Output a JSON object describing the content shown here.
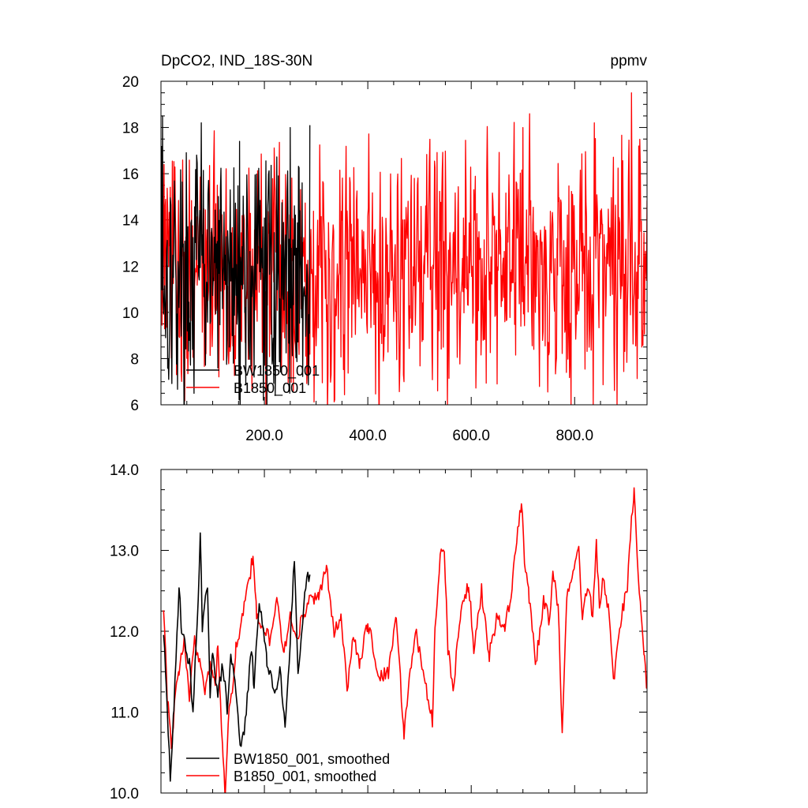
{
  "chart_data": [
    {
      "type": "line",
      "title_left": "DpCO2, IND_18S-30N",
      "title_right": "ppmv",
      "xlim": [
        0,
        940
      ],
      "ylim": [
        6,
        20
      ],
      "x_tick_values": [
        200,
        400,
        600,
        800
      ],
      "x_tick_labels": [
        "200.0",
        "400.0",
        "600.0",
        "800.0"
      ],
      "y_tick_values": [
        6,
        8,
        10,
        12,
        14,
        16,
        18,
        20
      ],
      "y_tick_labels": [
        "6",
        "8",
        "10",
        "12",
        "14",
        "16",
        "18",
        "20"
      ],
      "legend_location": "bottom-left",
      "series": [
        {
          "name": "BW1850_001",
          "color": "#000000",
          "x_start": 1,
          "x_step": 1,
          "count": 288,
          "mean": 11.7,
          "amplitude": 2.4,
          "key_points": [
            [
              1,
              17.2
            ],
            [
              3,
              18.5
            ],
            [
              8,
              10.2
            ],
            [
              78,
              18.2
            ],
            [
              140,
              7.8
            ],
            [
              152,
              17.4
            ],
            [
              198,
              6.2
            ],
            [
              250,
              18.0
            ],
            [
              288,
              18.1
            ]
          ]
        },
        {
          "name": "B1850_001",
          "color": "#ff0000",
          "x_start": 1,
          "x_step": 1,
          "count": 940,
          "mean": 11.9,
          "amplitude": 2.5,
          "key_points": [
            [
              6,
              16.4
            ],
            [
              30,
              7.3
            ],
            [
              470,
              7.0
            ],
            [
              535,
              6.6
            ],
            [
              650,
              6.9
            ],
            [
              700,
              18.0
            ],
            [
              838,
              18.2
            ],
            [
              910,
              19.5
            ],
            [
              930,
              8.5
            ]
          ]
        }
      ]
    },
    {
      "type": "line",
      "xlim": [
        0,
        940
      ],
      "ylim": [
        10,
        14
      ],
      "y_tick_values": [
        10,
        11,
        12,
        13,
        14
      ],
      "y_tick_labels": [
        "10.0",
        "11.0",
        "12.0",
        "13.0",
        "14.0"
      ],
      "legend_location": "bottom-left",
      "series": [
        {
          "name": "BW1850_001, smoothed",
          "color": "#000000",
          "key_points": [
            [
              5,
              12.0
            ],
            [
              10,
              11.3
            ],
            [
              18,
              10.2
            ],
            [
              25,
              11.0
            ],
            [
              35,
              12.6
            ],
            [
              40,
              12.0
            ],
            [
              55,
              11.6
            ],
            [
              62,
              11.0
            ],
            [
              72,
              12.4
            ],
            [
              76,
              13.3
            ],
            [
              80,
              12.0
            ],
            [
              90,
              12.6
            ],
            [
              95,
              11.1
            ],
            [
              100,
              11.8
            ],
            [
              110,
              11.2
            ],
            [
              120,
              11.6
            ],
            [
              128,
              11.0
            ],
            [
              135,
              11.7
            ],
            [
              145,
              11.3
            ],
            [
              155,
              10.5
            ],
            [
              165,
              11.0
            ],
            [
              175,
              11.8
            ],
            [
              180,
              11.3
            ],
            [
              190,
              12.4
            ],
            [
              196,
              12.1
            ],
            [
              205,
              11.6
            ],
            [
              212,
              11.5
            ],
            [
              220,
              11.2
            ],
            [
              230,
              11.6
            ],
            [
              240,
              10.8
            ],
            [
              250,
              11.9
            ],
            [
              258,
              12.9
            ],
            [
              265,
              11.4
            ],
            [
              272,
              11.9
            ],
            [
              280,
              12.6
            ],
            [
              288,
              12.7
            ]
          ]
        },
        {
          "name": "B1850_001, smoothed",
          "color": "#ff0000",
          "key_points": [
            [
              5,
              12.3
            ],
            [
              12,
              11.2
            ],
            [
              20,
              10.6
            ],
            [
              28,
              11.2
            ],
            [
              35,
              11.5
            ],
            [
              45,
              11.9
            ],
            [
              55,
              11.2
            ],
            [
              65,
              11.9
            ],
            [
              75,
              11.6
            ],
            [
              85,
              11.3
            ],
            [
              95,
              11.6
            ],
            [
              105,
              11.3
            ],
            [
              110,
              11.9
            ],
            [
              115,
              11.1
            ],
            [
              120,
              10.5
            ],
            [
              124,
              10.0
            ],
            [
              130,
              10.9
            ],
            [
              138,
              11.3
            ],
            [
              145,
              11.8
            ],
            [
              155,
              12.1
            ],
            [
              165,
              12.4
            ],
            [
              178,
              12.95
            ],
            [
              185,
              12.2
            ],
            [
              195,
              12.1
            ],
            [
              210,
              11.9
            ],
            [
              225,
              12.4
            ],
            [
              238,
              11.7
            ],
            [
              250,
              12.2
            ],
            [
              262,
              11.9
            ],
            [
              275,
              12.2
            ],
            [
              290,
              12.4
            ],
            [
              305,
              12.4
            ],
            [
              320,
              12.8
            ],
            [
              335,
              12.0
            ],
            [
              348,
              12.2
            ],
            [
              360,
              11.3
            ],
            [
              372,
              11.9
            ],
            [
              385,
              11.6
            ],
            [
              400,
              12.1
            ],
            [
              410,
              11.8
            ],
            [
              420,
              11.4
            ],
            [
              440,
              11.5
            ],
            [
              455,
              12.2
            ],
            [
              470,
              10.7
            ],
            [
              480,
              11.4
            ],
            [
              492,
              12.0
            ],
            [
              505,
              11.6
            ],
            [
              515,
              11.2
            ],
            [
              525,
              10.9
            ],
            [
              530,
              12.1
            ],
            [
              540,
              12.9
            ],
            [
              548,
              13.05
            ],
            [
              555,
              11.8
            ],
            [
              565,
              11.3
            ],
            [
              580,
              12.2
            ],
            [
              595,
              12.6
            ],
            [
              605,
              11.8
            ],
            [
              620,
              12.5
            ],
            [
              635,
              11.7
            ],
            [
              650,
              12.2
            ],
            [
              665,
              12.0
            ],
            [
              680,
              12.6
            ],
            [
              690,
              13.3
            ],
            [
              697,
              13.6
            ],
            [
              703,
              12.9
            ],
            [
              712,
              12.4
            ],
            [
              725,
              11.6
            ],
            [
              740,
              12.4
            ],
            [
              752,
              12.1
            ],
            [
              758,
              12.7
            ],
            [
              768,
              12.3
            ],
            [
              776,
              10.8
            ],
            [
              785,
              12.4
            ],
            [
              795,
              12.6
            ],
            [
              808,
              13.0
            ],
            [
              815,
              12.2
            ],
            [
              825,
              12.6
            ],
            [
              835,
              12.2
            ],
            [
              842,
              13.1
            ],
            [
              848,
              12.3
            ],
            [
              855,
              12.7
            ],
            [
              865,
              12.3
            ],
            [
              875,
              11.4
            ],
            [
              885,
              11.9
            ],
            [
              893,
              12.3
            ],
            [
              902,
              12.5
            ],
            [
              910,
              13.4
            ],
            [
              915,
              13.7
            ],
            [
              921,
              12.9
            ],
            [
              928,
              12.2
            ],
            [
              935,
              11.7
            ],
            [
              940,
              11.3
            ]
          ]
        }
      ]
    }
  ]
}
